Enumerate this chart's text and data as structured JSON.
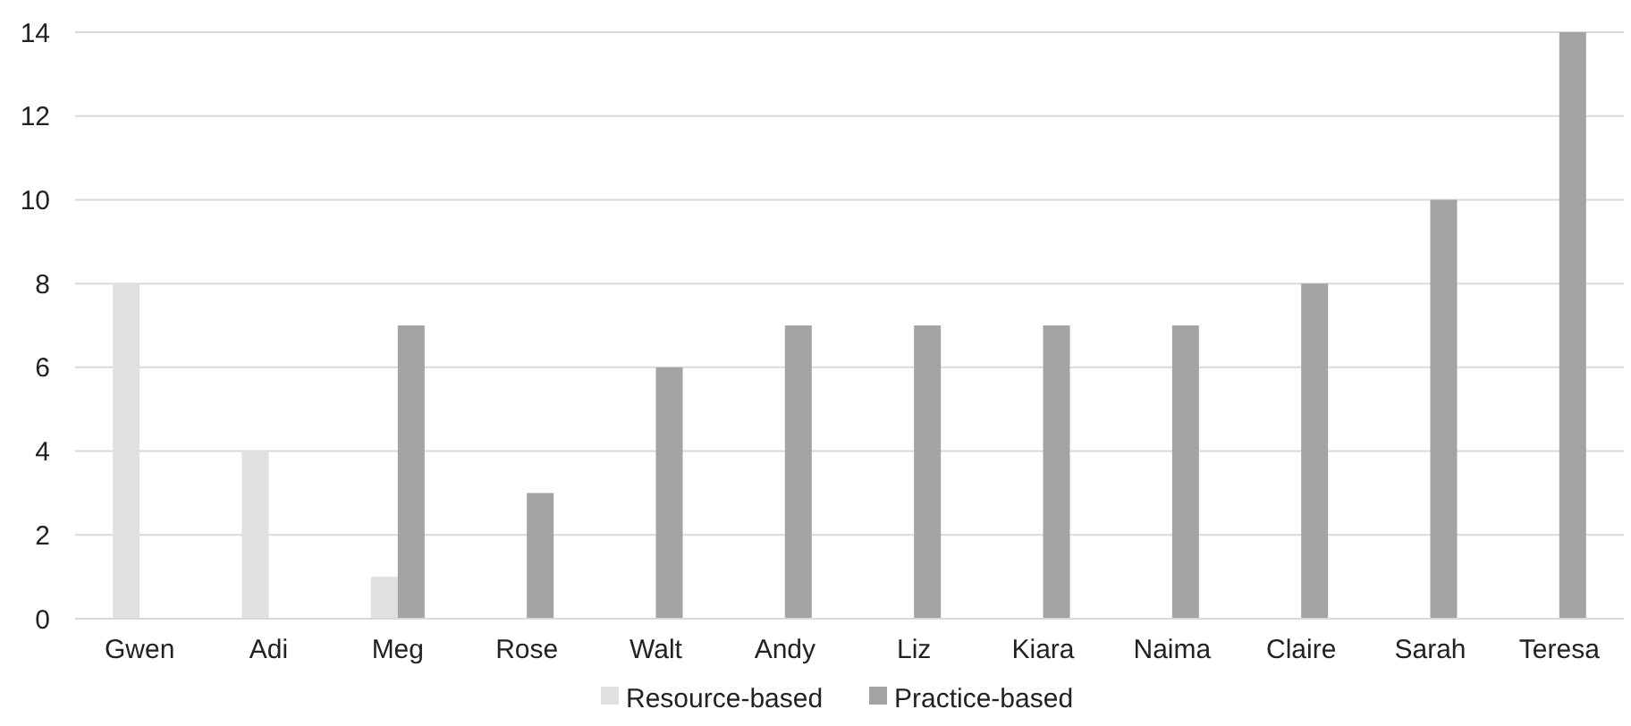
{
  "chart_data": {
    "type": "bar",
    "categories": [
      "Gwen",
      "Adi",
      "Meg",
      "Rose",
      "Walt",
      "Andy",
      "Liz",
      "Kiara",
      "Naima",
      "Claire",
      "Sarah",
      "Teresa"
    ],
    "series": [
      {
        "name": "Resource-based",
        "color": "#e0e0e0",
        "values": [
          8,
          4,
          1,
          null,
          null,
          null,
          null,
          null,
          null,
          null,
          null,
          null
        ]
      },
      {
        "name": "Practice-based",
        "color": "#a3a3a3",
        "values": [
          null,
          null,
          7,
          3,
          6,
          7,
          7,
          7,
          7,
          8,
          10,
          14
        ]
      }
    ],
    "ylim": [
      0,
      14
    ],
    "yticks": [
      0,
      2,
      4,
      6,
      8,
      10,
      12,
      14
    ],
    "grid": "y",
    "legend": "bottom"
  }
}
